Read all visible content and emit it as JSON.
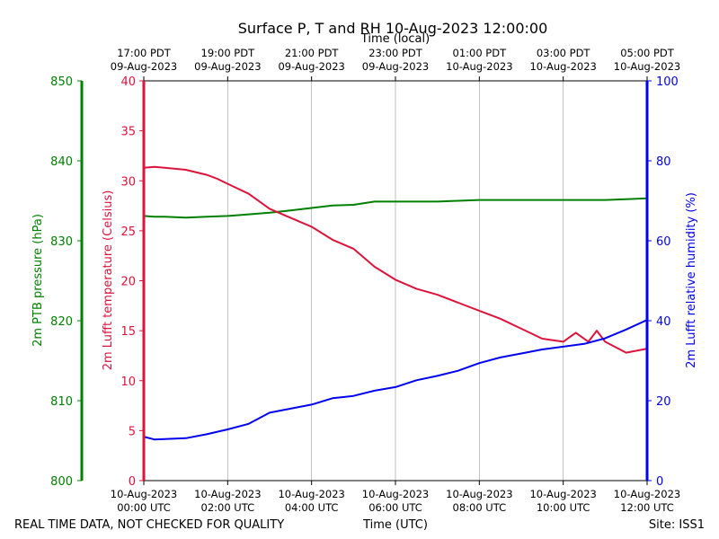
{
  "chart_data": {
    "type": "line",
    "title": "Surface P, T and RH 10-Aug-2023 12:00:00",
    "top_axis_label": "Time (local)",
    "xlabel": "Time (UTC)",
    "footer_left": "REAL TIME DATA, NOT CHECKED FOR QUALITY",
    "footer_right": "Site: ISS1",
    "x_range_hours": [
      0,
      12
    ],
    "x_ticks": [
      {
        "hour": 0,
        "utc": [
          "10-Aug-2023",
          "00:00 UTC"
        ],
        "local": [
          "17:00 PDT",
          "09-Aug-2023"
        ]
      },
      {
        "hour": 2,
        "utc": [
          "10-Aug-2023",
          "02:00 UTC"
        ],
        "local": [
          "19:00 PDT",
          "09-Aug-2023"
        ]
      },
      {
        "hour": 4,
        "utc": [
          "10-Aug-2023",
          "04:00 UTC"
        ],
        "local": [
          "21:00 PDT",
          "09-Aug-2023"
        ]
      },
      {
        "hour": 6,
        "utc": [
          "10-Aug-2023",
          "06:00 UTC"
        ],
        "local": [
          "23:00 PDT",
          "09-Aug-2023"
        ]
      },
      {
        "hour": 8,
        "utc": [
          "10-Aug-2023",
          "08:00 UTC"
        ],
        "local": [
          "01:00 PDT",
          "10-Aug-2023"
        ]
      },
      {
        "hour": 10,
        "utc": [
          "10-Aug-2023",
          "10:00 UTC"
        ],
        "local": [
          "03:00 PDT",
          "10-Aug-2023"
        ]
      },
      {
        "hour": 12,
        "utc": [
          "10-Aug-2023",
          "12:00 UTC"
        ],
        "local": [
          "05:00 PDT",
          "10-Aug-2023"
        ]
      }
    ],
    "axes": {
      "pressure": {
        "label": "2m PTB pressure (hPa)",
        "range": [
          800,
          850
        ],
        "ticks": [
          800,
          810,
          820,
          830,
          840,
          850
        ],
        "color": "#008000"
      },
      "temperature": {
        "label": "2m Lufft temperature (Celsius)",
        "range": [
          0,
          40
        ],
        "ticks": [
          0,
          5,
          10,
          15,
          20,
          25,
          30,
          35,
          40
        ],
        "color": "#dc143c"
      },
      "humidity": {
        "label": "2m Lufft relative humidity (%)",
        "range": [
          0,
          100
        ],
        "ticks": [
          0,
          20,
          40,
          60,
          80,
          100
        ],
        "color": "#0000ee"
      }
    },
    "series": [
      {
        "name": "2m PTB pressure (hPa)",
        "axis": "pressure",
        "color": "#008000",
        "x": [
          0,
          0.25,
          0.5,
          1,
          1.5,
          2,
          2.5,
          3,
          3.5,
          4,
          4.5,
          5,
          5.5,
          6,
          6.5,
          7,
          7.5,
          8,
          8.5,
          9,
          9.5,
          10,
          10.5,
          11,
          11.5,
          12
        ],
        "y": [
          833.1,
          833.0,
          833.0,
          832.9,
          833.0,
          833.1,
          833.3,
          833.5,
          833.8,
          834.1,
          834.4,
          834.5,
          834.9,
          834.9,
          834.9,
          834.9,
          835.0,
          835.1,
          835.1,
          835.1,
          835.1,
          835.1,
          835.1,
          835.1,
          835.2,
          835.3
        ]
      },
      {
        "name": "2m Lufft temperature (Celsius)",
        "axis": "temperature",
        "color": "#dc143c",
        "x": [
          0,
          0.25,
          0.5,
          1,
          1.5,
          1.75,
          2,
          2.5,
          3,
          3.5,
          4,
          4.5,
          5,
          5.5,
          6,
          6.5,
          7,
          7.5,
          8,
          8.5,
          9,
          9.5,
          10,
          10.3,
          10.6,
          10.8,
          11,
          11.5,
          12
        ],
        "y": [
          31.3,
          31.4,
          31.3,
          31.1,
          30.6,
          30.2,
          29.7,
          28.7,
          27.2,
          26.3,
          25.4,
          24.1,
          23.2,
          21.4,
          20.1,
          19.2,
          18.6,
          17.8,
          17.0,
          16.2,
          15.2,
          14.2,
          13.9,
          14.8,
          13.9,
          15.0,
          13.9,
          12.8,
          13.2
        ]
      },
      {
        "name": "2m Lufft relative humidity (%)",
        "axis": "humidity",
        "color": "#0000ee",
        "x": [
          0,
          0.25,
          0.5,
          1,
          1.5,
          2,
          2.5,
          3,
          3.5,
          4,
          4.5,
          5,
          5.5,
          6,
          6.5,
          7,
          7.5,
          8,
          8.5,
          9,
          9.5,
          10,
          10.5,
          11,
          11.5,
          12
        ],
        "y": [
          11.0,
          10.3,
          10.4,
          10.6,
          11.6,
          12.8,
          14.2,
          17.0,
          18.0,
          19.0,
          20.6,
          21.2,
          22.5,
          23.4,
          25.1,
          26.2,
          27.5,
          29.4,
          30.8,
          31.8,
          32.8,
          33.5,
          34.2,
          35.6,
          37.8,
          40.2
        ]
      }
    ]
  }
}
